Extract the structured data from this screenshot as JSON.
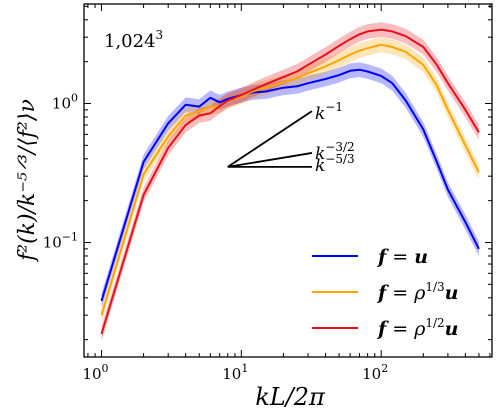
{
  "chart_data": {
    "type": "line",
    "annotation_label": "1,024",
    "annotation_exponent": "3",
    "xlabel": "kL/2π",
    "ylabel": "f²(k)/k⁻⁵ᐟ³/⟨f²⟩ν",
    "xscale": "log",
    "yscale": "log",
    "xlim": [
      0.75,
      620
    ],
    "ylim": [
      0.015,
      5.2
    ],
    "x_ticks": [
      {
        "value": 1,
        "base": "10",
        "exp": "0"
      },
      {
        "value": 10,
        "base": "10",
        "exp": "1"
      },
      {
        "value": 100,
        "base": "10",
        "exp": "2"
      }
    ],
    "y_ticks": [
      {
        "value": 0.1,
        "base": "10",
        "exp": "−1"
      },
      {
        "value": 1,
        "base": "10",
        "exp": "0"
      }
    ],
    "grid": false,
    "legend_position": "lower-right",
    "legend_entries": [
      {
        "bold": "f",
        "eq": " = ",
        "rho": "",
        "rho_exp": "",
        "tail": "u",
        "color": "#0000ff"
      },
      {
        "bold": "f",
        "eq": " = ",
        "rho": "ρ",
        "rho_exp": "1/3",
        "tail": "u",
        "color": "#ffa500"
      },
      {
        "bold": "f",
        "eq": " = ",
        "rho": "ρ",
        "rho_exp": "1/2",
        "tail": "u",
        "color": "#e8101a"
      }
    ],
    "reference_slopes": [
      {
        "label": "k",
        "exp": "−1",
        "slope": -1
      },
      {
        "label": "k",
        "exp": "−3/2",
        "slope": -1.5
      },
      {
        "label": "k",
        "exp": "−5/3",
        "slope": -1.6667
      }
    ],
    "series": [
      {
        "name": "f = u",
        "color": "#0000ff",
        "x": [
          1,
          2,
          3,
          4,
          5,
          6,
          7,
          8,
          10,
          12,
          15,
          20,
          25,
          30,
          40,
          50,
          60,
          70,
          80,
          100,
          120,
          150,
          200,
          250,
          300,
          400,
          500
        ],
        "y": [
          0.038,
          0.38,
          0.72,
          0.98,
          0.95,
          1.1,
          1.02,
          1.08,
          1.15,
          1.2,
          1.22,
          1.3,
          1.33,
          1.4,
          1.5,
          1.6,
          1.72,
          1.75,
          1.7,
          1.58,
          1.4,
          1.05,
          0.65,
          0.38,
          0.24,
          0.14,
          0.09
        ]
      },
      {
        "name": "f = ρ^{1/3}u",
        "color": "#ffa500",
        "x": [
          1,
          2,
          3,
          4,
          5,
          6,
          7,
          8,
          10,
          12,
          15,
          20,
          25,
          30,
          40,
          50,
          60,
          70,
          80,
          100,
          120,
          150,
          200,
          250,
          300,
          400,
          500
        ],
        "y": [
          0.03,
          0.31,
          0.58,
          0.82,
          0.88,
          0.95,
          0.96,
          1.04,
          1.12,
          1.22,
          1.3,
          1.42,
          1.52,
          1.65,
          1.85,
          2.05,
          2.25,
          2.4,
          2.5,
          2.65,
          2.55,
          2.35,
          1.9,
          1.35,
          0.9,
          0.5,
          0.32
        ]
      },
      {
        "name": "f = ρ^{1/2}u",
        "color": "#e8101a",
        "x": [
          1,
          2,
          3,
          4,
          5,
          6,
          7,
          8,
          10,
          12,
          15,
          20,
          25,
          30,
          40,
          50,
          60,
          70,
          80,
          100,
          120,
          150,
          200,
          250,
          300,
          400,
          500
        ],
        "y": [
          0.022,
          0.22,
          0.48,
          0.7,
          0.82,
          0.85,
          0.96,
          1.05,
          1.15,
          1.25,
          1.38,
          1.55,
          1.7,
          1.9,
          2.25,
          2.6,
          2.9,
          3.15,
          3.3,
          3.4,
          3.3,
          3.05,
          2.55,
          1.9,
          1.4,
          0.9,
          0.62
        ]
      }
    ]
  }
}
